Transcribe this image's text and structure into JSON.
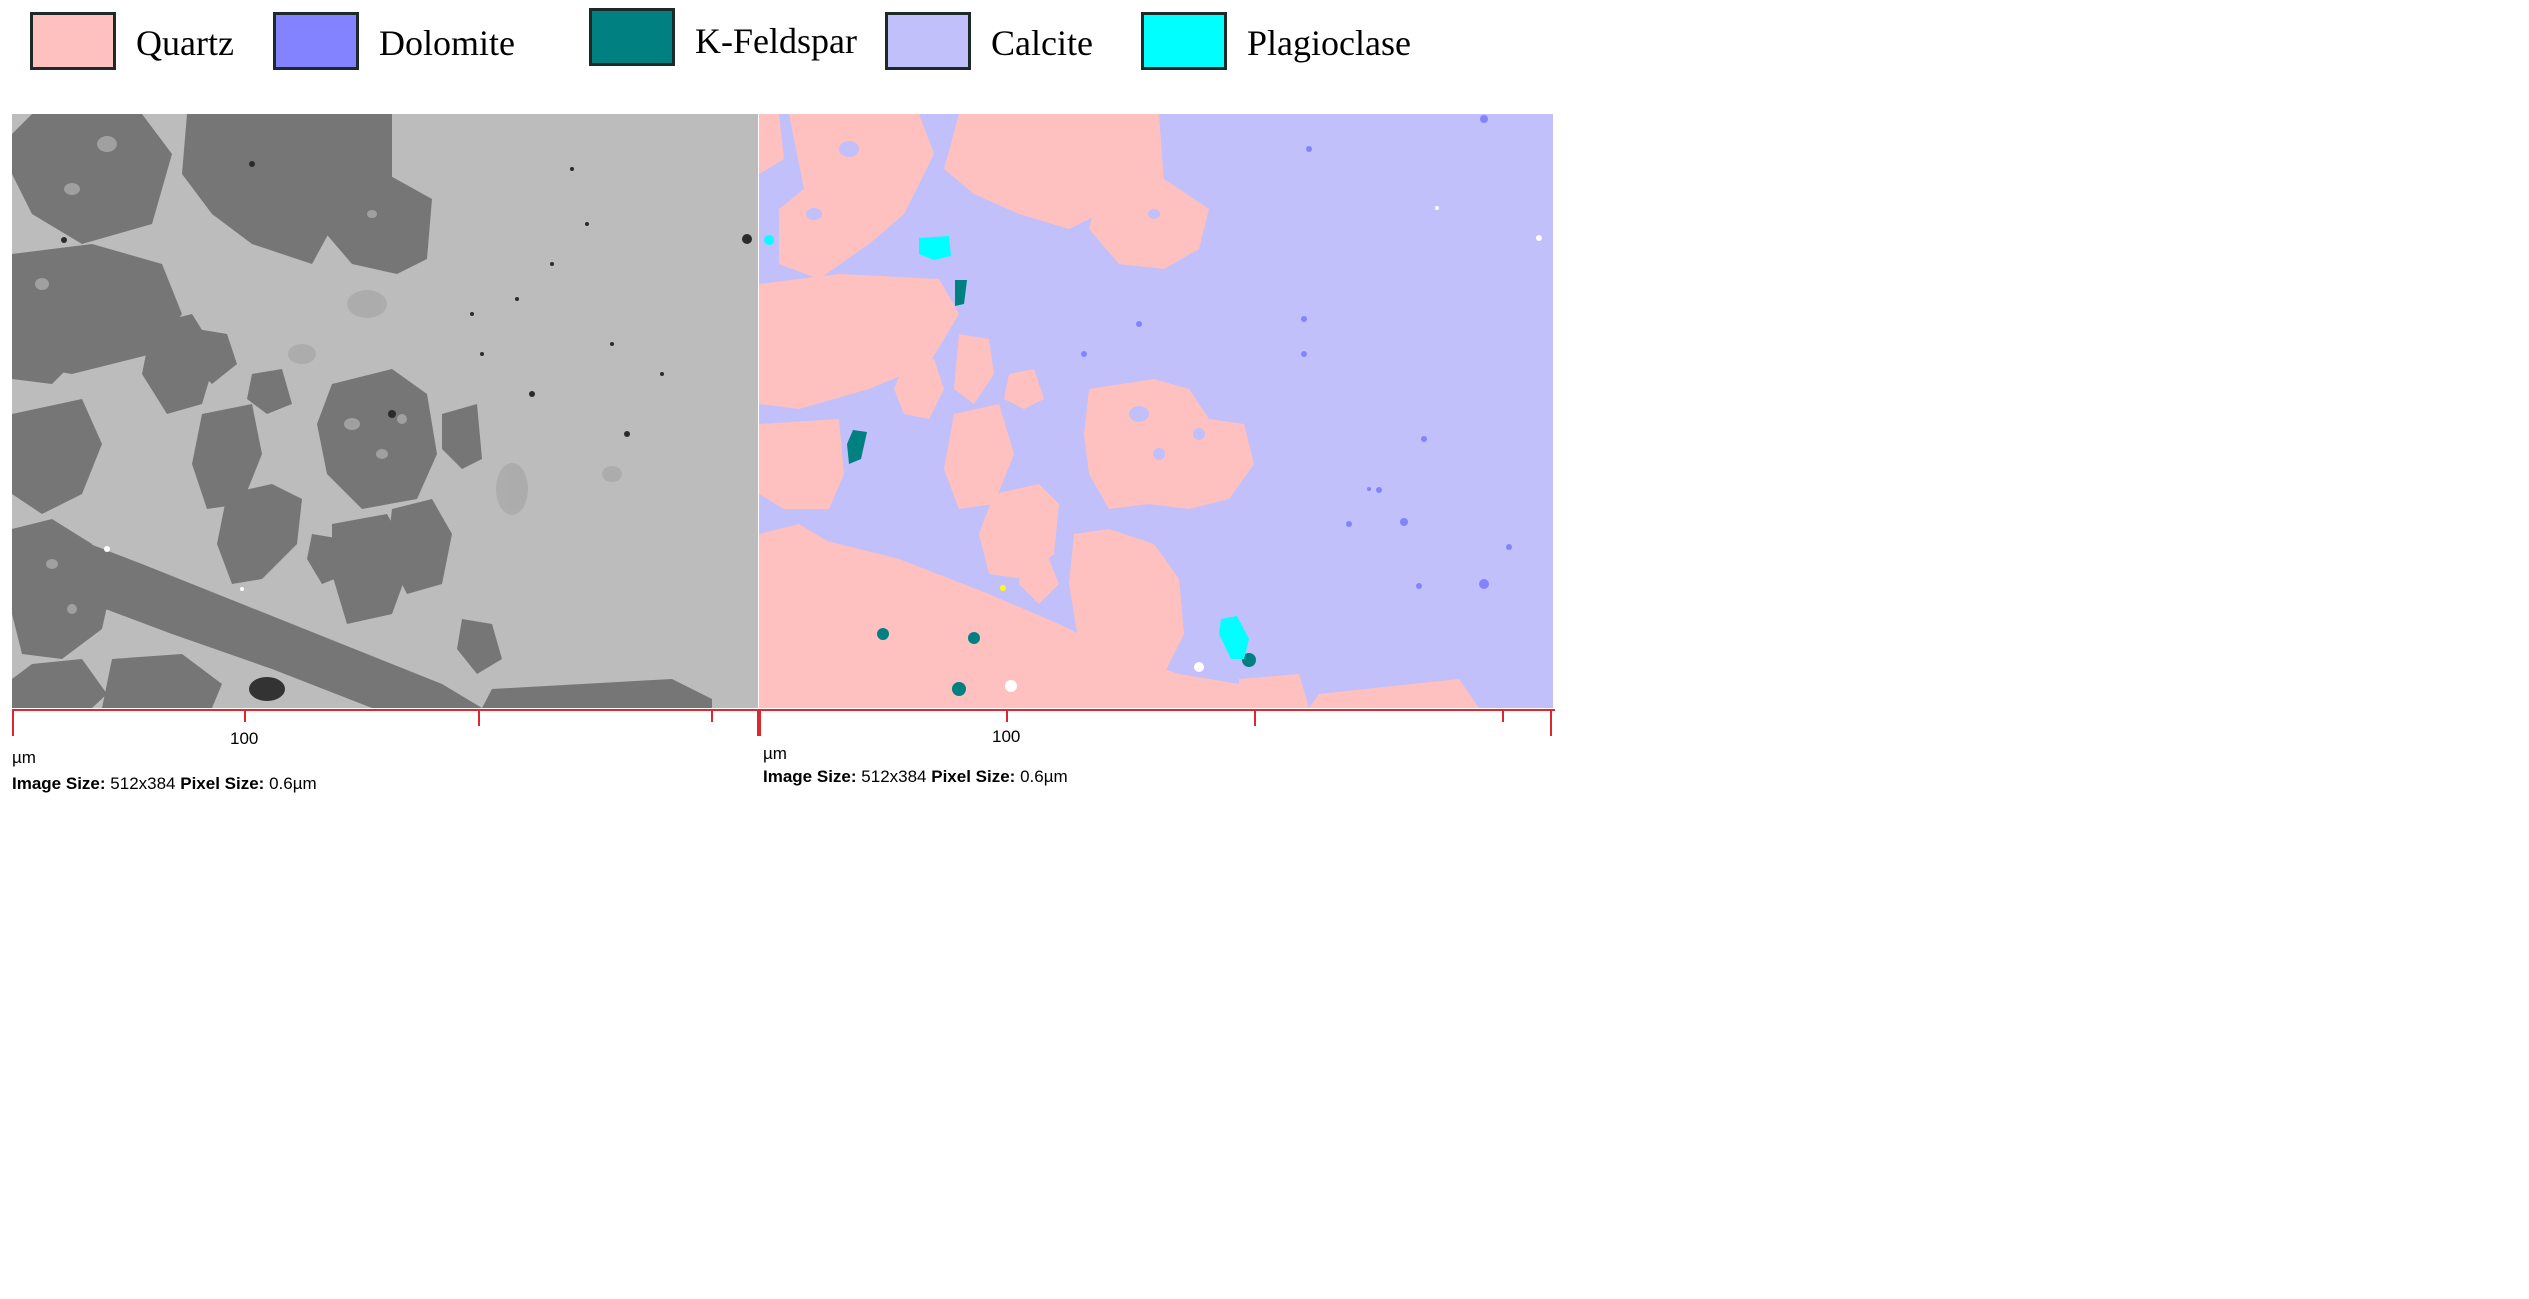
{
  "legend": [
    {
      "label": "Quartz",
      "color": "#ffc1c0"
    },
    {
      "label": "Dolomite",
      "color": "#8383ff"
    },
    {
      "label": "K-Feldspar",
      "color": "#008080"
    },
    {
      "label": "Calcite",
      "color": "#c1c0fa"
    },
    {
      "label": "Plagioclase",
      "color": "#00ffff"
    }
  ],
  "panels": {
    "left": {
      "type": "BSE image",
      "scale_tick_label": "100",
      "unit": "µm",
      "image_size_label": "Image Size:",
      "image_size_value": "512x384",
      "pixel_size_label": "Pixel Size:",
      "pixel_size_value": "0.6µm"
    },
    "right": {
      "type": "mineral map",
      "scale_tick_label": "100",
      "unit": "µm",
      "image_size_label": "Image Size:",
      "image_size_value": "512x384",
      "pixel_size_label": "Pixel Size:",
      "pixel_size_value": "0.6µm"
    }
  },
  "colors": {
    "bse_matrix": "#bcbcbc",
    "bse_grain": "#757575",
    "ruler": "#e0262e"
  }
}
